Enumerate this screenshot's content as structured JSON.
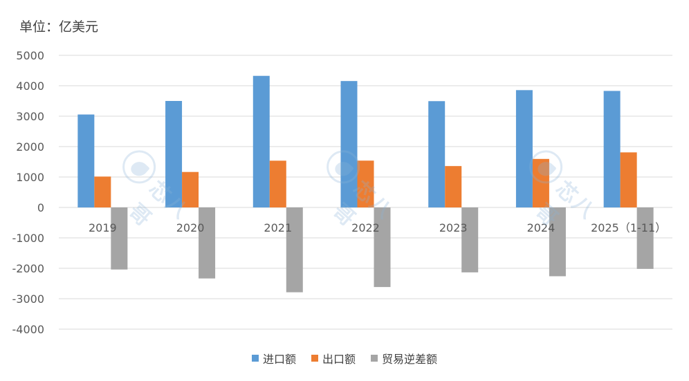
{
  "unit_label": "单位：亿美元",
  "watermark_text": "芯八哥",
  "colors": {
    "imports": "#5b9bd5",
    "exports": "#ed7d31",
    "deficit": "#a5a5a5",
    "grid": "#d9d9d9",
    "axis_text": "#595959"
  },
  "chart_data": {
    "type": "bar",
    "title": "",
    "xlabel": "",
    "ylabel": "",
    "unit": "亿美元",
    "ylim": [
      -4000,
      5000
    ],
    "yticks": [
      5000,
      4000,
      3000,
      2000,
      1000,
      0,
      -1000,
      -2000,
      -3000,
      -4000
    ],
    "grid": true,
    "legend_position": "bottom",
    "categories": [
      "2019",
      "2020",
      "2021",
      "2022",
      "2023",
      "2024",
      "2025（1-11）"
    ],
    "series": [
      {
        "name": "进口额",
        "color": "#5b9bd5",
        "values": [
          3055,
          3500,
          4325,
          4155,
          3494,
          3856,
          3830
        ]
      },
      {
        "name": "出口额",
        "color": "#ed7d31",
        "values": [
          1015,
          1166,
          1537,
          1539,
          1360,
          1595,
          1810
        ]
      },
      {
        "name": "贸易逆差额",
        "color": "#a5a5a5",
        "values": [
          -2040,
          -2334,
          -2788,
          -2616,
          -2134,
          -2261,
          -2020
        ]
      }
    ]
  }
}
